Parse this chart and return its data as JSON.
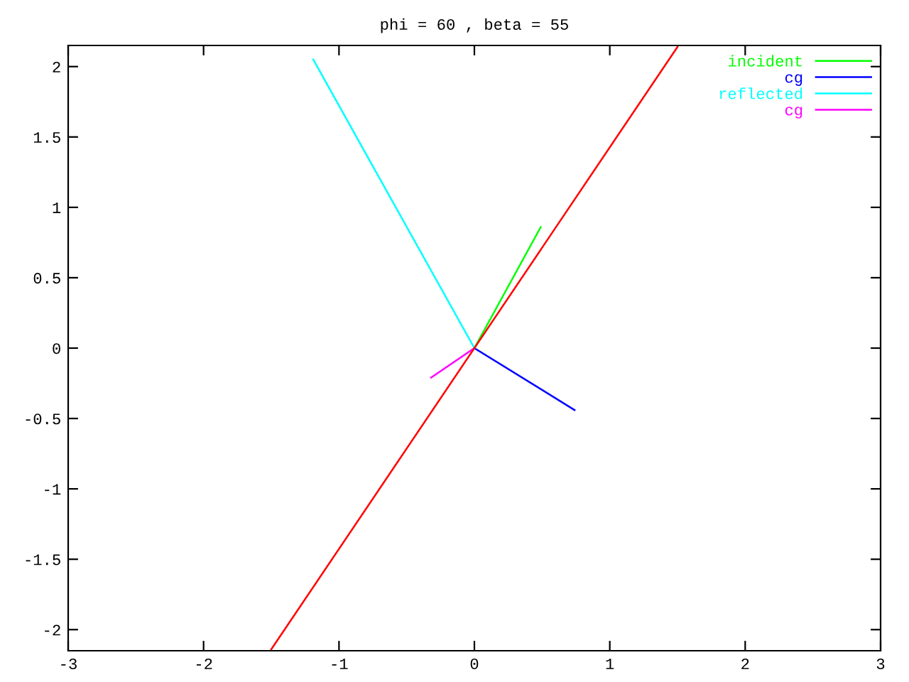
{
  "chart_data": {
    "type": "line",
    "title": "phi = 60 , beta = 55",
    "series": [
      {
        "name": "incident",
        "color": "#00ff00",
        "x": [
          0,
          0.49
        ],
        "values": [
          0,
          0.86
        ]
      },
      {
        "name": "cg",
        "color": "#0000ff",
        "x": [
          0,
          0.74
        ],
        "values": [
          0,
          -0.44
        ]
      },
      {
        "name": "reflected",
        "color": "#00ffff",
        "x": [
          0,
          -1.19
        ],
        "values": [
          0,
          2.05
        ]
      },
      {
        "name": "cg",
        "color": "#ff00ff",
        "x": [
          0,
          -0.32
        ],
        "values": [
          0,
          -0.21
        ]
      },
      {
        "color": "#ff0000",
        "x": [
          -1.5,
          1.5
        ],
        "values": [
          -2.14,
          2.14
        ]
      }
    ],
    "xlim": [
      -3,
      3
    ],
    "xticks": [
      -3,
      -2,
      -1,
      0,
      1,
      2,
      3
    ],
    "ylim": [
      -2.15,
      2.15
    ],
    "yticks": [
      -2,
      -1.5,
      -1,
      -0.5,
      0,
      0.5,
      1,
      1.5,
      2
    ],
    "grid": false,
    "legend": "top right",
    "marker": "none",
    "line_style": "solid"
  }
}
